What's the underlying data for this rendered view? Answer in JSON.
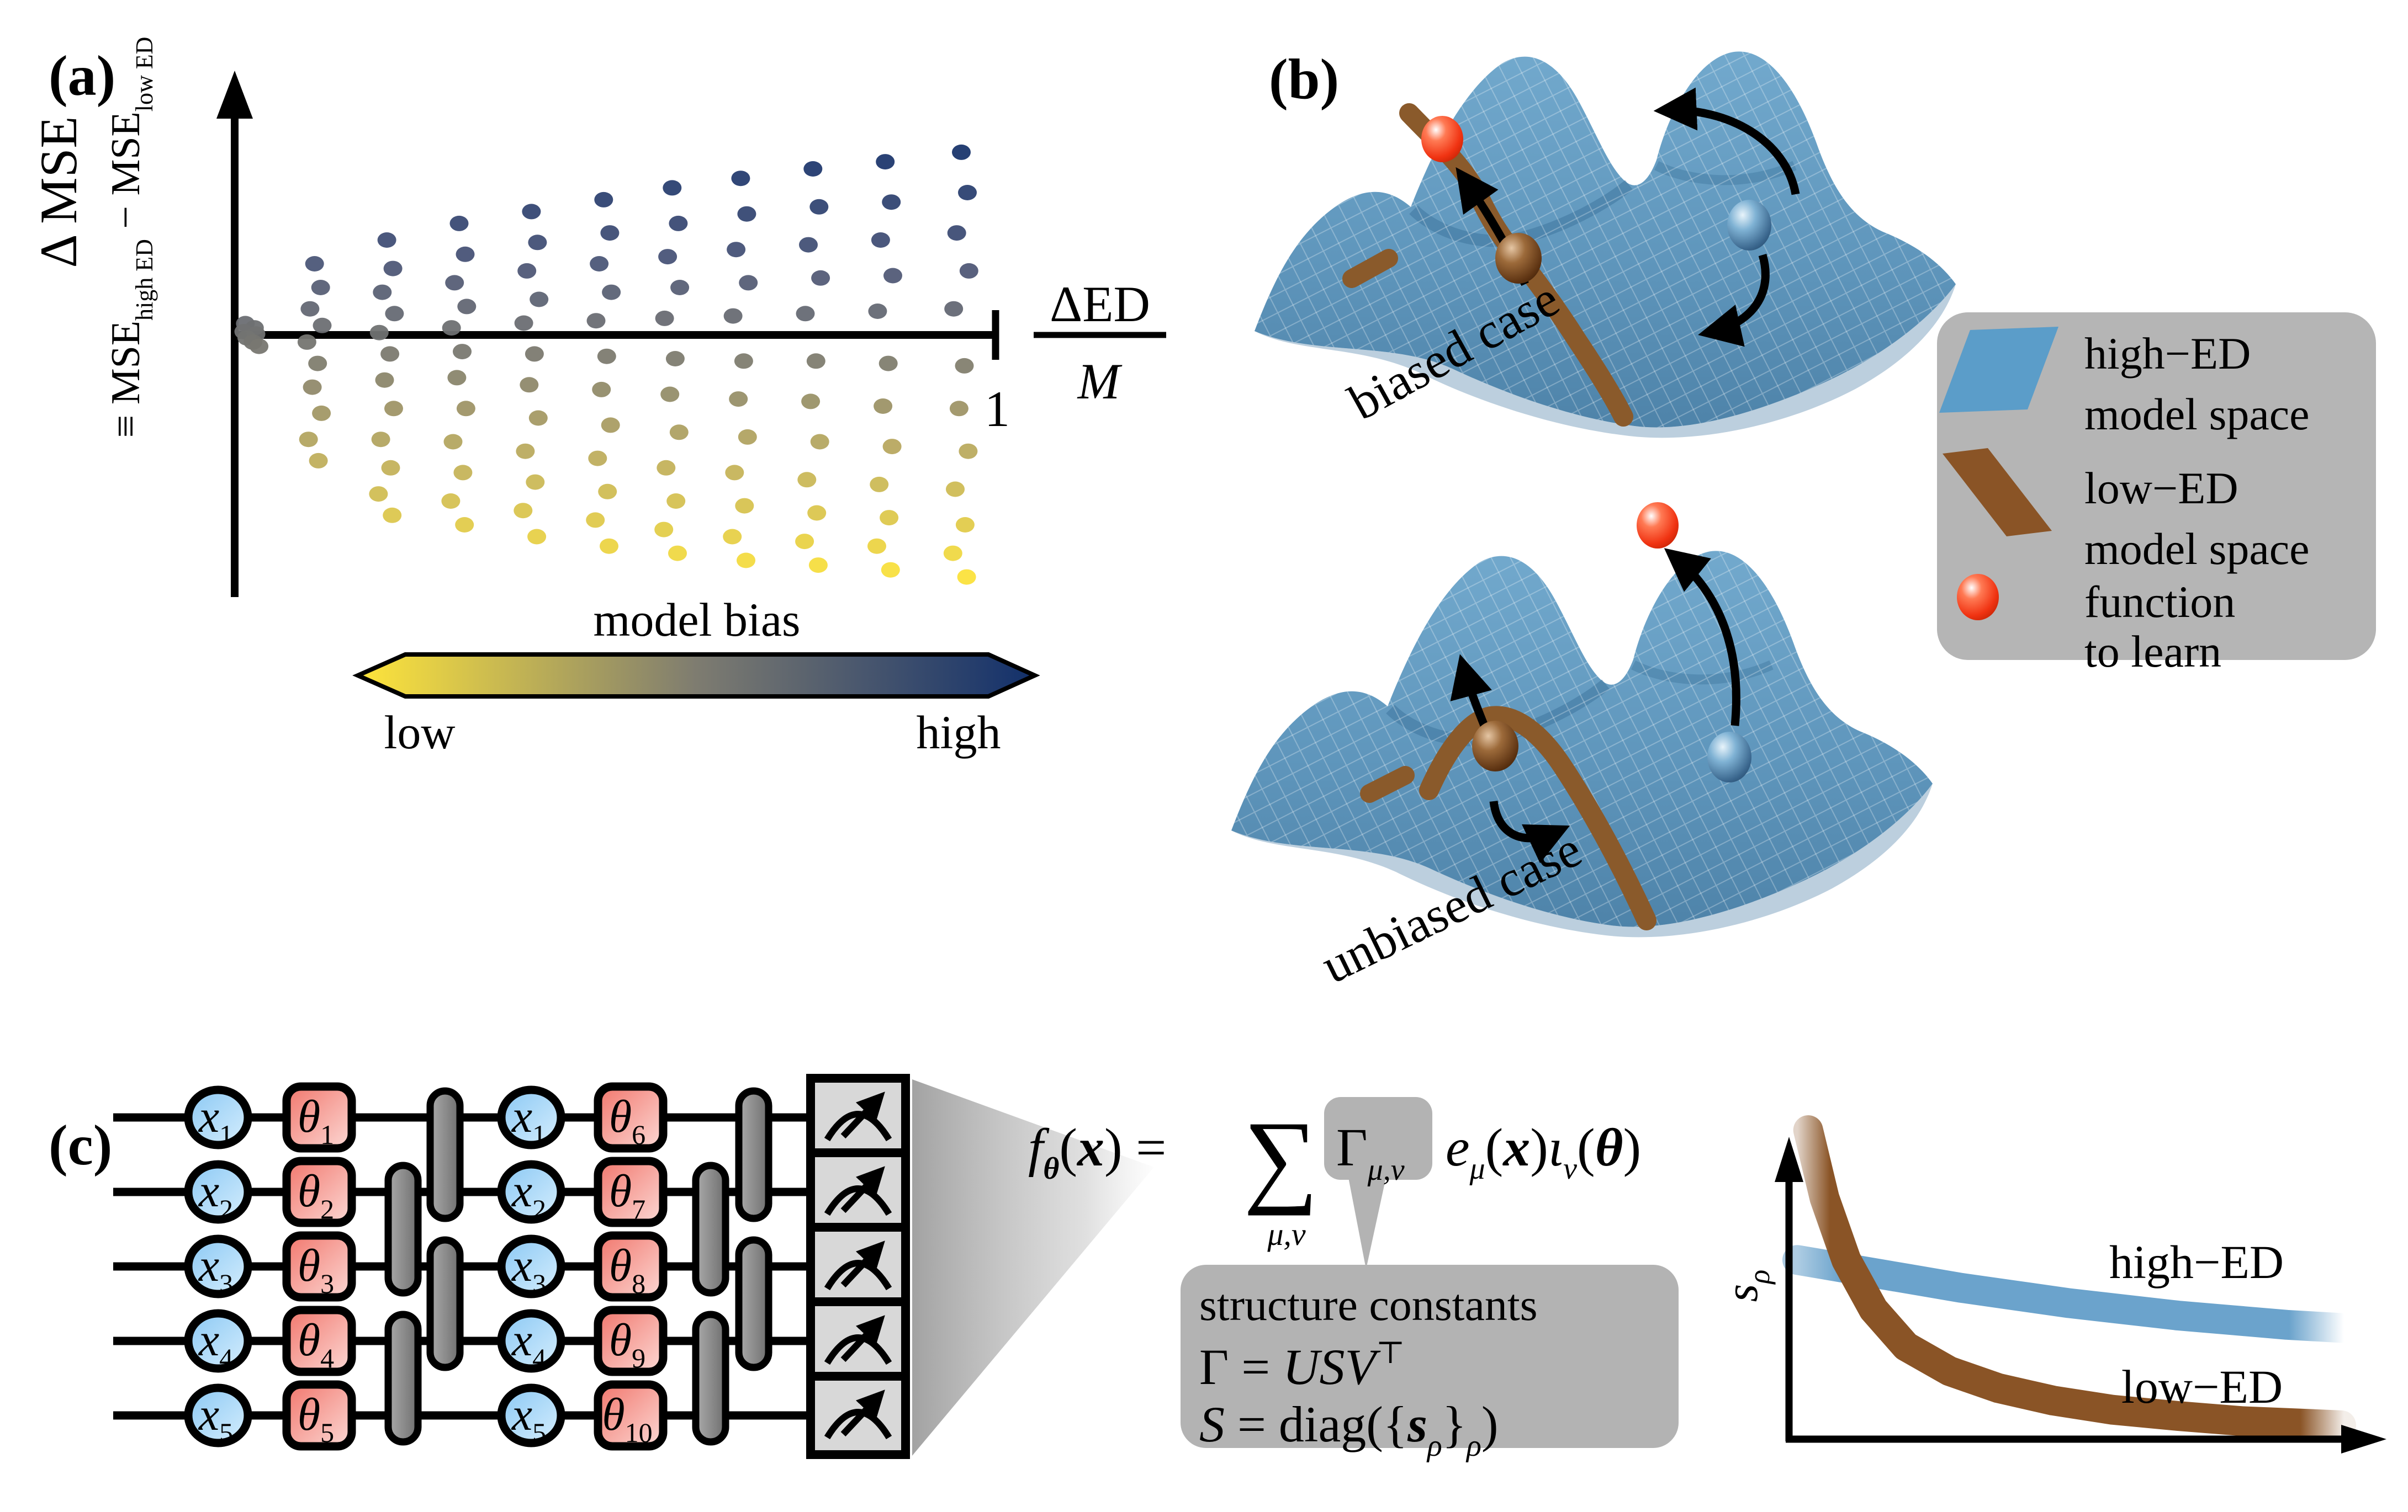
{
  "figure": {
    "panel_a": {
      "label": "(a)",
      "ylabel_main": "Δ MSE",
      "ylabel_parts": {
        "eq": "≡ MSE",
        "sub_high": "high ED",
        "minus": " − MSE",
        "sub_low": "low ED"
      },
      "fraction": {
        "numerator": "ΔED",
        "denominator": "M"
      },
      "tick_label": "1",
      "colorbar": {
        "title": "model bias",
        "low": "low",
        "high": "high",
        "colors": [
          "#ffe53a",
          "#7e7c70",
          "#12306b"
        ]
      }
    },
    "panel_b": {
      "label": "(b)",
      "top_case": "biased case",
      "bottom_case": "unbiased case",
      "legend": {
        "items": [
          {
            "icon": "high-ed-parallelogram",
            "color": "#5b9dc9",
            "lines": [
              "high−ED",
              "model space"
            ]
          },
          {
            "icon": "low-ed-band",
            "color": "#8a5426",
            "lines": [
              "low−ED",
              "model space"
            ]
          },
          {
            "icon": "red-ball",
            "color": "#fe3e20",
            "lines": [
              "function",
              "to learn"
            ]
          }
        ]
      }
    },
    "panel_c": {
      "label": "(c)",
      "inputs": [
        {
          "base": "x",
          "sub": "1"
        },
        {
          "base": "x",
          "sub": "2"
        },
        {
          "base": "x",
          "sub": "3"
        },
        {
          "base": "x",
          "sub": "4"
        },
        {
          "base": "x",
          "sub": "5"
        }
      ],
      "params_layer1": [
        {
          "base": "θ",
          "sub": "1"
        },
        {
          "base": "θ",
          "sub": "2"
        },
        {
          "base": "θ",
          "sub": "3"
        },
        {
          "base": "θ",
          "sub": "4"
        },
        {
          "base": "θ",
          "sub": "5"
        }
      ],
      "params_layer2": [
        {
          "base": "θ",
          "sub": "6"
        },
        {
          "base": "θ",
          "sub": "7"
        },
        {
          "base": "θ",
          "sub": "8"
        },
        {
          "base": "θ",
          "sub": "9"
        },
        {
          "base": "θ",
          "sub": "10"
        }
      ],
      "equation": {
        "f": "f",
        "f_sub": "θ",
        "open1": "(",
        "x1": "x",
        "close_eq": ") = ",
        "sum": "∑",
        "sum_sub": "μ,ν",
        "gamma": "Γ",
        "gamma_sub": "μ,ν",
        "e": "e",
        "e_sub": "μ",
        "open2": "(",
        "x2": "x",
        "close2": ")",
        "iota": "ι",
        "iota_sub": "ν",
        "open3": "(",
        "theta": "θ",
        "close3": ")"
      },
      "structure_box": {
        "line1": "structure constants",
        "line2": {
          "lhs": "Γ = ",
          "usv": "USV",
          "transpose": "⊤"
        },
        "line3": {
          "s": "S",
          "mid": " = diag(",
          "brace_open": "{",
          "sval": "s",
          "sval_sub": "ρ",
          "brace_close": "}",
          "outer_sub": "ρ",
          "close": ")"
        }
      },
      "mini_plot": {
        "ylabel_base": "s",
        "ylabel_sub": "ρ"
      }
    }
  },
  "chart_data": [
    {
      "type": "scatter",
      "title": "",
      "xlabel": "ΔED / M",
      "ylabel": "ΔMSE ≡ MSE_high ED − MSE_low ED",
      "x_range": [
        0,
        1.05
      ],
      "y_range": [
        -1.1,
        1.0
      ],
      "x_tick": {
        "value": 1,
        "label": "1"
      },
      "color_axis": {
        "label": "model bias",
        "low": "low",
        "high": "high"
      },
      "colormap": {
        "t": [
          0,
          0.28,
          0.5,
          0.72,
          1
        ],
        "colors": [
          "#ffe53a",
          "#bfae5e",
          "#7e7c70",
          "#4a5578",
          "#12306b"
        ]
      },
      "points": [
        [
          0.014,
          0.048
        ],
        [
          0.026,
          0.03
        ],
        [
          0.012,
          0.014
        ],
        [
          0.028,
          0.004
        ],
        [
          0.016,
          -0.012
        ],
        [
          0.024,
          -0.03
        ],
        [
          0.032,
          -0.048
        ],
        [
          0.105,
          0.3
        ],
        [
          0.113,
          0.2
        ],
        [
          0.099,
          0.11
        ],
        [
          0.115,
          0.04
        ],
        [
          0.095,
          -0.03
        ],
        [
          0.109,
          -0.12
        ],
        [
          0.102,
          -0.22
        ],
        [
          0.114,
          -0.33
        ],
        [
          0.097,
          -0.44
        ],
        [
          0.11,
          -0.53
        ],
        [
          0.2,
          0.4
        ],
        [
          0.208,
          0.28
        ],
        [
          0.194,
          0.18
        ],
        [
          0.21,
          0.09
        ],
        [
          0.19,
          0.01
        ],
        [
          0.204,
          -0.08
        ],
        [
          0.197,
          -0.19
        ],
        [
          0.209,
          -0.31
        ],
        [
          0.192,
          -0.44
        ],
        [
          0.205,
          -0.56
        ],
        [
          0.189,
          -0.67
        ],
        [
          0.207,
          -0.76
        ],
        [
          0.295,
          0.47
        ],
        [
          0.303,
          0.34
        ],
        [
          0.289,
          0.22
        ],
        [
          0.305,
          0.12
        ],
        [
          0.285,
          0.03
        ],
        [
          0.299,
          -0.07
        ],
        [
          0.292,
          -0.18
        ],
        [
          0.304,
          -0.31
        ],
        [
          0.287,
          -0.45
        ],
        [
          0.3,
          -0.58
        ],
        [
          0.284,
          -0.7
        ],
        [
          0.302,
          -0.8
        ],
        [
          0.39,
          0.52
        ],
        [
          0.398,
          0.39
        ],
        [
          0.384,
          0.27
        ],
        [
          0.4,
          0.15
        ],
        [
          0.38,
          0.05
        ],
        [
          0.394,
          -0.08
        ],
        [
          0.387,
          -0.21
        ],
        [
          0.399,
          -0.35
        ],
        [
          0.382,
          -0.49
        ],
        [
          0.395,
          -0.62
        ],
        [
          0.379,
          -0.74
        ],
        [
          0.397,
          -0.85
        ],
        [
          0.485,
          0.57
        ],
        [
          0.493,
          0.43
        ],
        [
          0.479,
          0.3
        ],
        [
          0.495,
          0.18
        ],
        [
          0.475,
          0.06
        ],
        [
          0.489,
          -0.09
        ],
        [
          0.482,
          -0.23
        ],
        [
          0.494,
          -0.38
        ],
        [
          0.477,
          -0.52
        ],
        [
          0.49,
          -0.66
        ],
        [
          0.474,
          -0.78
        ],
        [
          0.492,
          -0.89
        ],
        [
          0.575,
          0.62
        ],
        [
          0.583,
          0.47
        ],
        [
          0.569,
          0.33
        ],
        [
          0.585,
          0.2
        ],
        [
          0.565,
          0.07
        ],
        [
          0.579,
          -0.1
        ],
        [
          0.572,
          -0.25
        ],
        [
          0.584,
          -0.41
        ],
        [
          0.567,
          -0.56
        ],
        [
          0.58,
          -0.7
        ],
        [
          0.564,
          -0.82
        ],
        [
          0.582,
          -0.92
        ],
        [
          0.665,
          0.66
        ],
        [
          0.673,
          0.51
        ],
        [
          0.659,
          0.36
        ],
        [
          0.675,
          0.22
        ],
        [
          0.655,
          0.08
        ],
        [
          0.669,
          -0.11
        ],
        [
          0.662,
          -0.27
        ],
        [
          0.674,
          -0.43
        ],
        [
          0.657,
          -0.58
        ],
        [
          0.67,
          -0.72
        ],
        [
          0.654,
          -0.85
        ],
        [
          0.672,
          -0.95
        ],
        [
          0.76,
          0.7
        ],
        [
          0.768,
          0.54
        ],
        [
          0.754,
          0.38
        ],
        [
          0.77,
          0.24
        ],
        [
          0.75,
          0.09
        ],
        [
          0.764,
          -0.11
        ],
        [
          0.757,
          -0.28
        ],
        [
          0.769,
          -0.45
        ],
        [
          0.752,
          -0.61
        ],
        [
          0.765,
          -0.75
        ],
        [
          0.749,
          -0.87
        ],
        [
          0.767,
          -0.97
        ],
        [
          0.855,
          0.73
        ],
        [
          0.863,
          0.56
        ],
        [
          0.849,
          0.4
        ],
        [
          0.865,
          0.25
        ],
        [
          0.845,
          0.1
        ],
        [
          0.859,
          -0.12
        ],
        [
          0.852,
          -0.3
        ],
        [
          0.864,
          -0.47
        ],
        [
          0.847,
          -0.63
        ],
        [
          0.86,
          -0.77
        ],
        [
          0.844,
          -0.89
        ],
        [
          0.862,
          -0.99
        ],
        [
          0.955,
          0.77
        ],
        [
          0.963,
          0.6
        ],
        [
          0.949,
          0.43
        ],
        [
          0.965,
          0.27
        ],
        [
          0.945,
          0.11
        ],
        [
          0.959,
          -0.13
        ],
        [
          0.952,
          -0.31
        ],
        [
          0.964,
          -0.49
        ],
        [
          0.947,
          -0.65
        ],
        [
          0.96,
          -0.8
        ],
        [
          0.944,
          -0.92
        ],
        [
          0.962,
          -1.02
        ]
      ]
    },
    {
      "type": "line",
      "ylabel": "s_ρ",
      "x_range": [
        0,
        1
      ],
      "y_range": [
        0,
        1.1
      ],
      "grid": false,
      "legend_position": "inline-labels",
      "series": [
        {
          "name": "high−ED",
          "color": "#6ba3cc",
          "x": [
            0.0,
            0.1,
            0.2,
            0.3,
            0.4,
            0.5,
            0.6,
            0.7,
            0.8,
            0.9,
            1.0
          ],
          "y": [
            0.58,
            0.55,
            0.52,
            0.49,
            0.465,
            0.44,
            0.42,
            0.4,
            0.385,
            0.37,
            0.36
          ]
        },
        {
          "name": "low−ED",
          "color": "#8a5426",
          "x": [
            0.02,
            0.05,
            0.09,
            0.14,
            0.2,
            0.28,
            0.37,
            0.47,
            0.58,
            0.7,
            0.82,
            1.0
          ],
          "y": [
            1.0,
            0.78,
            0.58,
            0.42,
            0.3,
            0.22,
            0.165,
            0.125,
            0.095,
            0.075,
            0.058,
            0.045
          ]
        }
      ]
    }
  ]
}
